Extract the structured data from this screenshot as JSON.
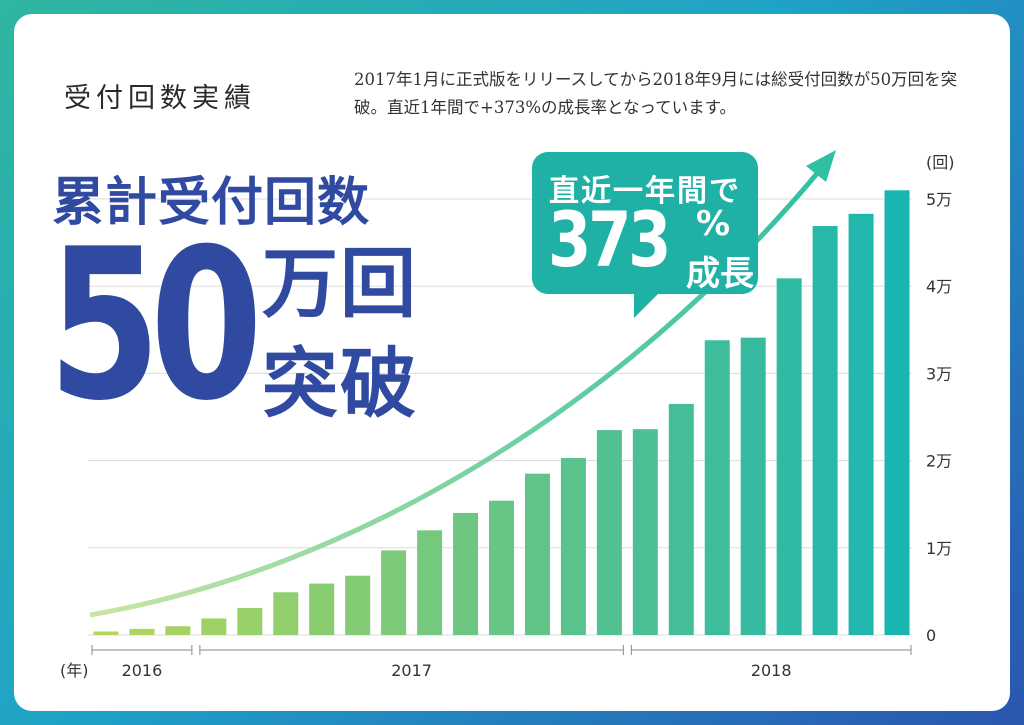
{
  "section_title": "受付回数実績",
  "description": "2017年1月に正式版をリリースしてから2018年9月には総受付回数が50万回を突破。直近1年間で+373%の成長率となっています。",
  "headline": "累計受付回数",
  "big_number": "50",
  "big_unit_1": "万回",
  "big_unit_2": "突破",
  "callout": {
    "line1": "直近一年間で",
    "value": "373",
    "percent": "%",
    "suffix": "成長"
  },
  "colors": {
    "title_blue": "#2f4aa0",
    "teal": "#1fb1a6",
    "bar_start": "#b4d65a",
    "bar_end": "#1ab5b0"
  },
  "chart_data": {
    "type": "bar",
    "y_unit_label": "(回)",
    "x_unit_label": "(年)",
    "yticks": [
      {
        "value": 0,
        "label": "0"
      },
      {
        "value": 10000,
        "label": "1万"
      },
      {
        "value": 20000,
        "label": "2万"
      },
      {
        "value": 30000,
        "label": "3万"
      },
      {
        "value": 40000,
        "label": "4万"
      },
      {
        "value": 50000,
        "label": "5万"
      }
    ],
    "ylim": [
      0,
      55000
    ],
    "values": [
      400,
      700,
      1000,
      1900,
      3100,
      4900,
      5900,
      6800,
      9700,
      12000,
      14000,
      15400,
      18500,
      20300,
      23500,
      23600,
      26500,
      33800,
      34100,
      40900,
      46900,
      48300,
      51000
    ],
    "year_groups": [
      {
        "label": "2016",
        "start": 0,
        "end": 2
      },
      {
        "label": "2017",
        "start": 3,
        "end": 14
      },
      {
        "label": "2018",
        "start": 15,
        "end": 22
      }
    ],
    "grid": true,
    "trend_arrow": true
  }
}
